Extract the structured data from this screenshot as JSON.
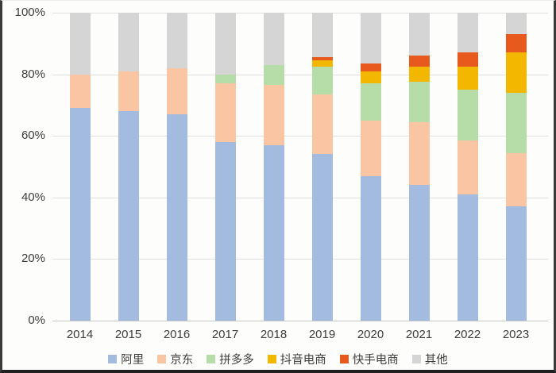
{
  "chart_data": {
    "type": "bar",
    "subtype": "stacked-100-percent",
    "title": "",
    "xlabel": "",
    "ylabel": "",
    "ylim": [
      0,
      100
    ],
    "grid": true,
    "legend_position": "bottom",
    "yticks": [
      "0%",
      "20%",
      "40%",
      "60%",
      "80%",
      "100%"
    ],
    "categories": [
      "2014",
      "2015",
      "2016",
      "2017",
      "2018",
      "2019",
      "2020",
      "2021",
      "2022",
      "2023"
    ],
    "series": [
      {
        "name": "阿里",
        "color": "#a3bbde",
        "values": [
          69,
          68,
          67,
          58,
          57,
          54,
          47,
          44,
          41,
          37
        ]
      },
      {
        "name": "京东",
        "color": "#fac5a2",
        "values": [
          11,
          13,
          15,
          19,
          19.5,
          19.5,
          18,
          20.5,
          17.5,
          17.5
        ]
      },
      {
        "name": "拼多多",
        "color": "#b6dca8",
        "values": [
          0,
          0,
          0,
          3,
          6.5,
          9,
          12,
          13,
          16.5,
          19.5
        ]
      },
      {
        "name": "抖音电商",
        "color": "#f3b700",
        "values": [
          0,
          0,
          0,
          0,
          0,
          2,
          4,
          5,
          7.5,
          13
        ]
      },
      {
        "name": "快手电商",
        "color": "#e7591c",
        "values": [
          0,
          0,
          0,
          0,
          0,
          1,
          2.5,
          3.5,
          4.5,
          6
        ]
      },
      {
        "name": "其他",
        "color": "#d5d5d5",
        "values": [
          20,
          19,
          18,
          20,
          17,
          14.5,
          16.5,
          14,
          13,
          7
        ]
      }
    ],
    "colors": {
      "gridline": "#e0e0e0",
      "axis_baseline": "#c8c8c8",
      "tick_text": "#3d3d3d"
    }
  }
}
